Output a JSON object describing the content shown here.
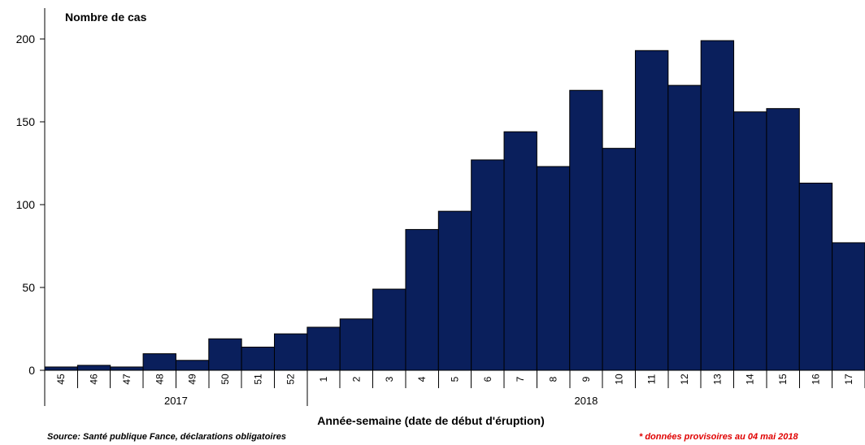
{
  "chart_data": {
    "type": "bar",
    "ylabel": "Nombre de cas",
    "xlabel": "Année-semaine (date de début d'éruption)",
    "ylim": [
      0,
      200
    ],
    "yticks": [
      "0",
      "50",
      "100",
      "150",
      "200"
    ],
    "categories": [
      "45",
      "46",
      "47",
      "48",
      "49",
      "50",
      "51",
      "52",
      "1",
      "2",
      "3",
      "4",
      "5",
      "6",
      "7",
      "8",
      "9",
      "10",
      "11",
      "12",
      "13",
      "14",
      "15",
      "16",
      "17"
    ],
    "values": [
      2,
      3,
      2,
      10,
      6,
      19,
      14,
      22,
      26,
      31,
      49,
      85,
      96,
      127,
      144,
      123,
      169,
      134,
      193,
      172,
      199,
      156,
      158,
      113,
      77
    ],
    "year_groups": [
      {
        "label": "2017",
        "count": 8
      },
      {
        "label": "2018",
        "count": 17
      }
    ],
    "bar_color": "#0a1f5c",
    "grid": false,
    "legend": "none"
  },
  "footer": {
    "source": "Source: Santé publique Fance, déclarations obligatoires",
    "note": "* données provisoires au  04 mai  2018",
    "note_color": "#e00000"
  }
}
